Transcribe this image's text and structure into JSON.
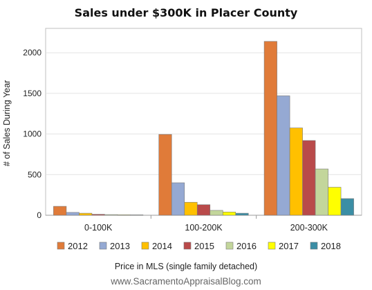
{
  "chart_data": {
    "type": "bar",
    "title": "Sales under $300K in Placer County",
    "xlabel": "Price in MLS (single family detached)",
    "ylabel": "# of Sales During Year",
    "categories": [
      "0-100K",
      "100-200K",
      "200-300K"
    ],
    "ylim": [
      0,
      2300
    ],
    "yticks": [
      0,
      500,
      1000,
      1500,
      2000
    ],
    "grid": true,
    "legend_position": "bottom",
    "series": [
      {
        "name": "2012",
        "color": "#e07b39",
        "values": [
          110,
          995,
          2140
        ]
      },
      {
        "name": "2013",
        "color": "#95a9d3",
        "values": [
          35,
          400,
          1470
        ]
      },
      {
        "name": "2014",
        "color": "#ffc000",
        "values": [
          25,
          160,
          1075
        ]
      },
      {
        "name": "2015",
        "color": "#b94a4a",
        "values": [
          12,
          130,
          920
        ]
      },
      {
        "name": "2016",
        "color": "#c3d69b",
        "values": [
          8,
          60,
          570
        ]
      },
      {
        "name": "2017",
        "color": "#ffff00",
        "values": [
          6,
          40,
          345
        ]
      },
      {
        "name": "2018",
        "color": "#3b8ea5",
        "values": [
          5,
          25,
          205
        ]
      }
    ]
  },
  "footer": "www.SacramentoAppraisalBlog.com"
}
